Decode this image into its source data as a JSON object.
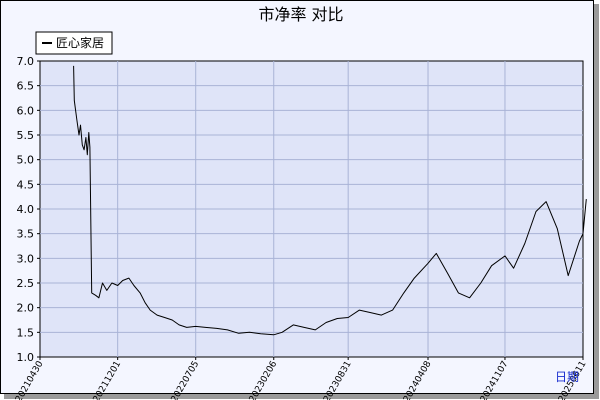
{
  "chart_data": {
    "type": "line",
    "title": "市净率  对比",
    "xlabel": "日期",
    "ylabel": "",
    "ylim": [
      1.0,
      7.0
    ],
    "y_ticks": [
      "1.0",
      "1.5",
      "2.0",
      "2.5",
      "3.0",
      "3.5",
      "4.0",
      "4.5",
      "5.0",
      "5.5",
      "6.0",
      "6.5",
      "7.0"
    ],
    "x_ticks": [
      "20210430",
      "20211201",
      "20220705",
      "20230206",
      "20230831",
      "20240408",
      "20241107",
      "20250611"
    ],
    "legend_position": "top-left",
    "grid": true,
    "series": [
      {
        "name": "匠心家居",
        "color": "#000000",
        "points": [
          [
            "20210801",
            6.9
          ],
          [
            "20210803",
            6.2
          ],
          [
            "20210810",
            5.8
          ],
          [
            "20210816",
            5.5
          ],
          [
            "20210820",
            5.7
          ],
          [
            "20210825",
            5.3
          ],
          [
            "20210830",
            5.2
          ],
          [
            "20210904",
            5.45
          ],
          [
            "20210908",
            5.1
          ],
          [
            "20210912",
            5.55
          ],
          [
            "20210915",
            5.25
          ],
          [
            "20210920",
            2.3
          ],
          [
            "20211001",
            2.25
          ],
          [
            "20211010",
            2.2
          ],
          [
            "20211020",
            2.5
          ],
          [
            "20211101",
            2.35
          ],
          [
            "20211115",
            2.5
          ],
          [
            "20211201",
            2.45
          ],
          [
            "20211215",
            2.55
          ],
          [
            "20220101",
            2.6
          ],
          [
            "20220115",
            2.45
          ],
          [
            "20220201",
            2.3
          ],
          [
            "20220215",
            2.1
          ],
          [
            "20220301",
            1.95
          ],
          [
            "20220320",
            1.85
          ],
          [
            "20220410",
            1.8
          ],
          [
            "20220501",
            1.75
          ],
          [
            "20220520",
            1.65
          ],
          [
            "20220610",
            1.6
          ],
          [
            "20220705",
            1.62
          ],
          [
            "20220801",
            1.6
          ],
          [
            "20220901",
            1.58
          ],
          [
            "20221001",
            1.55
          ],
          [
            "20221101",
            1.48
          ],
          [
            "20221201",
            1.5
          ],
          [
            "20230101",
            1.47
          ],
          [
            "20230206",
            1.45
          ],
          [
            "20230301",
            1.5
          ],
          [
            "20230401",
            1.65
          ],
          [
            "20230501",
            1.6
          ],
          [
            "20230601",
            1.55
          ],
          [
            "20230701",
            1.7
          ],
          [
            "20230801",
            1.78
          ],
          [
            "20230831",
            1.8
          ],
          [
            "20231001",
            1.95
          ],
          [
            "20231101",
            1.9
          ],
          [
            "20231201",
            1.85
          ],
          [
            "20240101",
            1.95
          ],
          [
            "20240201",
            2.3
          ],
          [
            "20240301",
            2.6
          ],
          [
            "20240408",
            2.9
          ],
          [
            "20240501",
            3.1
          ],
          [
            "20240601",
            2.7
          ],
          [
            "20240701",
            2.3
          ],
          [
            "20240801",
            2.2
          ],
          [
            "20240901",
            2.5
          ],
          [
            "20241001",
            2.85
          ],
          [
            "20241107",
            3.05
          ],
          [
            "20241201",
            2.8
          ],
          [
            "20250101",
            3.3
          ],
          [
            "20250201",
            3.95
          ],
          [
            "20250301",
            4.15
          ],
          [
            "20250401",
            3.6
          ],
          [
            "20250501",
            2.65
          ],
          [
            "20250601",
            3.35
          ],
          [
            "20250611",
            3.5
          ],
          [
            "20250620",
            4.2
          ]
        ]
      }
    ]
  }
}
